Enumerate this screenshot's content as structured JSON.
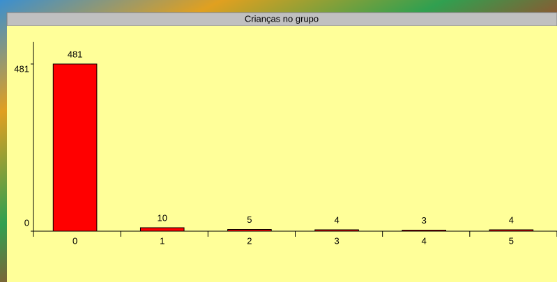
{
  "chart_data": {
    "type": "bar",
    "title": "Crianças no grupo",
    "categories": [
      "0",
      "1",
      "2",
      "3",
      "4",
      "5"
    ],
    "values": [
      481,
      10,
      5,
      4,
      3,
      4
    ],
    "color": "#ff0000",
    "ylim": [
      0,
      545
    ],
    "yticks": [
      0,
      481
    ]
  }
}
